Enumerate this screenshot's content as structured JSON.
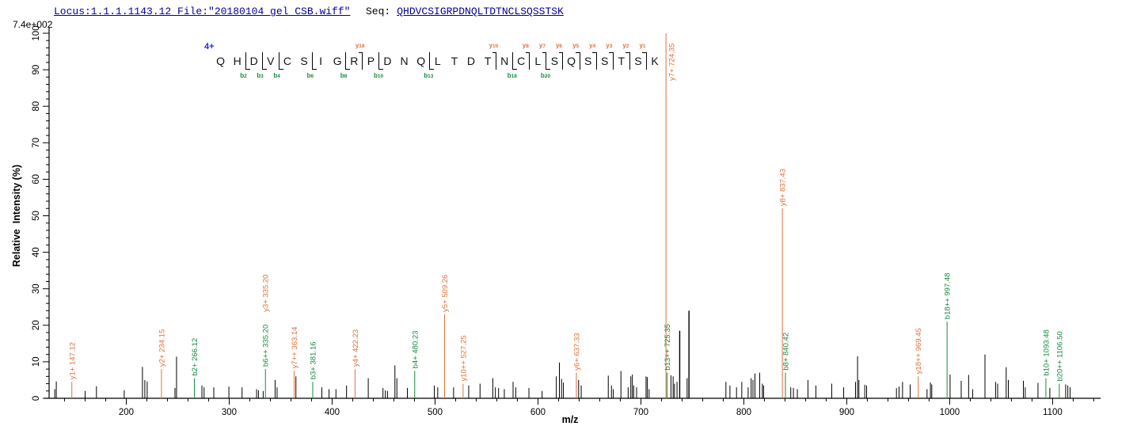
{
  "header": {
    "locus_file": "Locus:1.1.1.1143.12 File:\"20180104_gel_CSB.wiff\"",
    "seq_label": "Seq:",
    "sequence": "QHDVCSIGRPDNQLTDTNCLSQSSTSK",
    "max_intensity": "7.4e+002"
  },
  "peptide_diagram": {
    "charge": "4+",
    "residues": [
      "Q",
      "H",
      "D",
      "V",
      "C",
      "S",
      "I",
      "G",
      "R",
      "P",
      "D",
      "N",
      "Q",
      "L",
      "T",
      "D",
      "T",
      "N",
      "C",
      "L",
      "S",
      "Q",
      "S",
      "S",
      "T",
      "S",
      "K"
    ],
    "fragments": [
      {
        "gap": 2,
        "b": "b2"
      },
      {
        "gap": 3,
        "b": "b3"
      },
      {
        "gap": 4,
        "b": "b4"
      },
      {
        "gap": 6,
        "b": "b6"
      },
      {
        "gap": 8,
        "b": "b8"
      },
      {
        "gap": 9,
        "y": "y18"
      },
      {
        "gap": 10,
        "b": "b10"
      },
      {
        "gap": 13,
        "b": "b13"
      },
      {
        "gap": 17,
        "y": "y10"
      },
      {
        "gap": 18,
        "b": "b18"
      },
      {
        "gap": 19,
        "y": "y8"
      },
      {
        "gap": 20,
        "y": "y7",
        "b": "b20"
      },
      {
        "gap": 21,
        "y": "y6"
      },
      {
        "gap": 22,
        "y": "y5"
      },
      {
        "gap": 23,
        "y": "y4"
      },
      {
        "gap": 24,
        "y": "y3"
      },
      {
        "gap": 25,
        "y": "y2"
      },
      {
        "gap": 26,
        "y": "y1"
      }
    ]
  },
  "colors": {
    "y_ion": "#E0713A",
    "b_ion": "#178A3C",
    "peak": "#000000",
    "header_blue": "#0000A0",
    "charge_blue": "#2626D8"
  },
  "chart_data": {
    "type": "bar",
    "subtype": "centroid-mass-spectrum",
    "title": "",
    "xlabel": "m/z",
    "ylabel": "Relative  Intensity (%)",
    "xlim": [
      125,
      1142
    ],
    "ylim": [
      0,
      100
    ],
    "x_major_tick_step": 100,
    "x_minor_tick_step": 20,
    "x_tick_labels": [
      200,
      300,
      400,
      500,
      600,
      700,
      800,
      900,
      1000,
      1100
    ],
    "y_major_tick_step": 10,
    "y_minor_tick_step": 2,
    "y_tick_labels": [
      0,
      10,
      20,
      30,
      40,
      50,
      60,
      70,
      80,
      90,
      100
    ],
    "grid": false,
    "peaks": [
      {
        "mz": 130.5,
        "i": 2.5
      },
      {
        "mz": 132.0,
        "i": 4.6
      },
      {
        "mz": 147.12,
        "i": 4.5,
        "ions": [
          {
            "label": "y1+ 147.12",
            "type": "y"
          }
        ]
      },
      {
        "mz": 160.0,
        "i": 2.0
      },
      {
        "mz": 171.0,
        "i": 3.3
      },
      {
        "mz": 198.0,
        "i": 2.2
      },
      {
        "mz": 215.7,
        "i": 8.6
      },
      {
        "mz": 218.0,
        "i": 5.0
      },
      {
        "mz": 220.3,
        "i": 4.6
      },
      {
        "mz": 234.15,
        "i": 8.0,
        "ions": [
          {
            "label": "y2+ 234.15",
            "type": "y"
          }
        ]
      },
      {
        "mz": 247.3,
        "i": 2.8
      },
      {
        "mz": 248.8,
        "i": 11.4
      },
      {
        "mz": 266.12,
        "i": 5.5,
        "ions": [
          {
            "label": "b2+ 266.12",
            "type": "b"
          }
        ]
      },
      {
        "mz": 273.5,
        "i": 3.5
      },
      {
        "mz": 275.6,
        "i": 3.0
      },
      {
        "mz": 285.0,
        "i": 3.0
      },
      {
        "mz": 299.7,
        "i": 3.2
      },
      {
        "mz": 312.5,
        "i": 3.0
      },
      {
        "mz": 326.6,
        "i": 2.5
      },
      {
        "mz": 328.4,
        "i": 2.2
      },
      {
        "mz": 333.0,
        "i": 2.0
      },
      {
        "mz": 335.2,
        "i": 8.0,
        "ions": [
          {
            "label": "b6++ 335.20",
            "type": "b"
          },
          {
            "label": "y3+ 335.20",
            "type": "y"
          }
        ]
      },
      {
        "mz": 344.6,
        "i": 5.0
      },
      {
        "mz": 346.5,
        "i": 3.0
      },
      {
        "mz": 363.14,
        "i": 7.5,
        "ions": [
          {
            "label": "y7++ 363.14",
            "type": "y"
          }
        ]
      },
      {
        "mz": 364.8,
        "i": 6.0
      },
      {
        "mz": 381.16,
        "i": 4.5,
        "ions": [
          {
            "label": "b3+ 381.16",
            "type": "b"
          }
        ]
      },
      {
        "mz": 390.0,
        "i": 3.0
      },
      {
        "mz": 397.0,
        "i": 2.5
      },
      {
        "mz": 403.7,
        "i": 2.5
      },
      {
        "mz": 414.0,
        "i": 3.5
      },
      {
        "mz": 422.23,
        "i": 8.0,
        "ions": [
          {
            "label": "y4+ 422.23",
            "type": "y"
          }
        ]
      },
      {
        "mz": 435.1,
        "i": 5.5
      },
      {
        "mz": 449.4,
        "i": 2.8
      },
      {
        "mz": 451.7,
        "i": 2.2
      },
      {
        "mz": 453.8,
        "i": 2.0
      },
      {
        "mz": 461.0,
        "i": 9.0
      },
      {
        "mz": 462.9,
        "i": 5.5
      },
      {
        "mz": 473.1,
        "i": 2.8
      },
      {
        "mz": 480.23,
        "i": 7.5,
        "ions": [
          {
            "label": "b4+ 480.23",
            "type": "b"
          }
        ]
      },
      {
        "mz": 499.3,
        "i": 3.5
      },
      {
        "mz": 502.6,
        "i": 3.0
      },
      {
        "mz": 509.26,
        "i": 23.0,
        "ions": [
          {
            "label": "y5+ 509.26",
            "type": "y"
          }
        ]
      },
      {
        "mz": 518.0,
        "i": 3.0
      },
      {
        "mz": 527.25,
        "i": 4.0,
        "ions": [
          {
            "label": "y10++ 527.25",
            "type": "y"
          }
        ]
      },
      {
        "mz": 532.7,
        "i": 3.5
      },
      {
        "mz": 543.7,
        "i": 4.0
      },
      {
        "mz": 556.1,
        "i": 5.5
      },
      {
        "mz": 558.6,
        "i": 3.0
      },
      {
        "mz": 561.7,
        "i": 2.8
      },
      {
        "mz": 567.3,
        "i": 2.5
      },
      {
        "mz": 575.8,
        "i": 4.5
      },
      {
        "mz": 578.4,
        "i": 3.0
      },
      {
        "mz": 591.2,
        "i": 2.8
      },
      {
        "mz": 604.0,
        "i": 2.0
      },
      {
        "mz": 617.8,
        "i": 6.0
      },
      {
        "mz": 620.8,
        "i": 9.8
      },
      {
        "mz": 622.9,
        "i": 5.3
      },
      {
        "mz": 624.7,
        "i": 4.3
      },
      {
        "mz": 637.33,
        "i": 7.0,
        "ions": [
          {
            "label": "y6+ 637.33",
            "type": "y"
          }
        ]
      },
      {
        "mz": 639.5,
        "i": 5.0
      },
      {
        "mz": 642.0,
        "i": 3.5
      },
      {
        "mz": 668.3,
        "i": 6.2
      },
      {
        "mz": 671.4,
        "i": 3.5
      },
      {
        "mz": 673.2,
        "i": 2.5
      },
      {
        "mz": 680.6,
        "i": 7.5
      },
      {
        "mz": 687.6,
        "i": 3.0
      },
      {
        "mz": 690.2,
        "i": 6.0
      },
      {
        "mz": 691.7,
        "i": 6.5
      },
      {
        "mz": 693.0,
        "i": 3.5
      },
      {
        "mz": 695.8,
        "i": 3.0
      },
      {
        "mz": 705.0,
        "i": 6.0
      },
      {
        "mz": 706.3,
        "i": 5.8
      },
      {
        "mz": 708.0,
        "i": 2.5
      },
      {
        "mz": 724.35,
        "i": 100.0,
        "ions": [
          {
            "label": "y7+ 724.35",
            "type": "y"
          }
        ]
      },
      {
        "mz": 725.35,
        "i": 7.0,
        "ions": [
          {
            "label": "b13++ 725.35",
            "type": "b"
          }
        ]
      },
      {
        "mz": 729.2,
        "i": 6.3
      },
      {
        "mz": 731.3,
        "i": 6.0
      },
      {
        "mz": 732.6,
        "i": 4.0
      },
      {
        "mz": 735.1,
        "i": 4.5
      },
      {
        "mz": 737.7,
        "i": 18.5
      },
      {
        "mz": 744.9,
        "i": 5.5
      },
      {
        "mz": 746.7,
        "i": 24.0
      },
      {
        "mz": 782.6,
        "i": 4.5
      },
      {
        "mz": 786.5,
        "i": 3.5
      },
      {
        "mz": 792.9,
        "i": 3.0
      },
      {
        "mz": 798.0,
        "i": 4.5
      },
      {
        "mz": 804.2,
        "i": 3.0
      },
      {
        "mz": 807.1,
        "i": 5.5
      },
      {
        "mz": 808.9,
        "i": 5.0
      },
      {
        "mz": 810.8,
        "i": 6.8
      },
      {
        "mz": 815.4,
        "i": 7.0
      },
      {
        "mz": 818.0,
        "i": 4.0
      },
      {
        "mz": 819.2,
        "i": 3.5
      },
      {
        "mz": 837.43,
        "i": 52.0,
        "ions": [
          {
            "label": "y8+ 837.43",
            "type": "y"
          }
        ]
      },
      {
        "mz": 840.42,
        "i": 7.0,
        "ions": [
          {
            "label": "b8+ 840.42",
            "type": "b"
          }
        ]
      },
      {
        "mz": 845.6,
        "i": 3.0
      },
      {
        "mz": 848.2,
        "i": 2.8
      },
      {
        "mz": 852.0,
        "i": 2.5
      },
      {
        "mz": 862.3,
        "i": 5.0
      },
      {
        "mz": 870.0,
        "i": 3.5
      },
      {
        "mz": 885.4,
        "i": 4.0
      },
      {
        "mz": 897.0,
        "i": 3.0
      },
      {
        "mz": 908.5,
        "i": 4.5
      },
      {
        "mz": 910.5,
        "i": 11.5
      },
      {
        "mz": 911.8,
        "i": 5.0
      },
      {
        "mz": 917.5,
        "i": 3.7
      },
      {
        "mz": 919.3,
        "i": 3.5
      },
      {
        "mz": 948.3,
        "i": 2.8
      },
      {
        "mz": 950.8,
        "i": 3.2
      },
      {
        "mz": 954.2,
        "i": 4.5
      },
      {
        "mz": 961.6,
        "i": 3.8
      },
      {
        "mz": 969.45,
        "i": 6.0,
        "ions": [
          {
            "label": "y18++ 969.45",
            "type": "y"
          }
        ]
      },
      {
        "mz": 978.0,
        "i": 2.5
      },
      {
        "mz": 981.3,
        "i": 4.3
      },
      {
        "mz": 982.6,
        "i": 3.8
      },
      {
        "mz": 997.48,
        "i": 21.0,
        "ions": [
          {
            "label": "b18++ 997.48",
            "type": "b"
          }
        ]
      },
      {
        "mz": 1000.4,
        "i": 6.5
      },
      {
        "mz": 1011.2,
        "i": 4.8
      },
      {
        "mz": 1018.4,
        "i": 6.4
      },
      {
        "mz": 1022.3,
        "i": 2.5
      },
      {
        "mz": 1034.3,
        "i": 12.0
      },
      {
        "mz": 1044.6,
        "i": 4.5
      },
      {
        "mz": 1046.6,
        "i": 4.0
      },
      {
        "mz": 1054.9,
        "i": 8.5
      },
      {
        "mz": 1057.0,
        "i": 5.0
      },
      {
        "mz": 1071.6,
        "i": 4.8
      },
      {
        "mz": 1073.4,
        "i": 3.0
      },
      {
        "mz": 1085.8,
        "i": 4.2
      },
      {
        "mz": 1093.48,
        "i": 5.5,
        "ions": [
          {
            "label": "b10+ 1093.48",
            "type": "b"
          }
        ]
      },
      {
        "mz": 1097.3,
        "i": 2.8
      },
      {
        "mz": 1106.5,
        "i": 4.0,
        "ions": [
          {
            "label": "b20++ 1106.50",
            "type": "b"
          }
        ]
      },
      {
        "mz": 1112.7,
        "i": 3.8
      },
      {
        "mz": 1114.8,
        "i": 3.5
      },
      {
        "mz": 1117.0,
        "i": 3.0
      }
    ]
  }
}
